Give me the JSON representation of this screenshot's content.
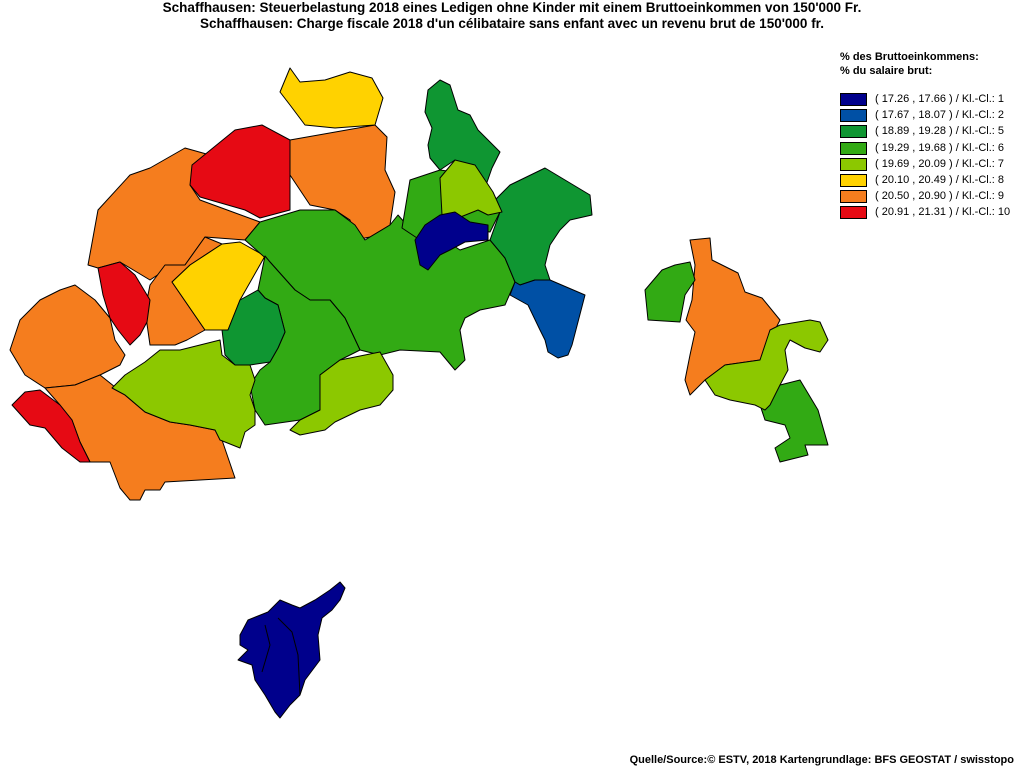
{
  "title": {
    "line1": "Schaffhausen: Steuerbelastung 2018 eines Ledigen ohne Kinder mit einem Bruttoeinkommen von 150'000 Fr.",
    "line2": "Schaffhausen: Charge fiscale 2018 d'un célibataire sans enfant avec un revenu brut de 150'000 fr."
  },
  "legend": {
    "title_de": "% des Bruttoeinkommens:",
    "title_fr": "% du salaire brut:",
    "items": [
      {
        "label": "( 17.26 , 17.66 ) / Kl.-Cl.: 1",
        "color": "#00008c"
      },
      {
        "label": "( 17.67 , 18.07 ) / Kl.-Cl.: 2",
        "color": "#0050a5"
      },
      {
        "label": "( 18.89 , 19.28 ) / Kl.-Cl.: 5",
        "color": "#0f9632"
      },
      {
        "label": "( 19.29 , 19.68 ) / Kl.-Cl.: 6",
        "color": "#32aa14"
      },
      {
        "label": "( 19.69 , 20.09 ) / Kl.-Cl.: 7",
        "color": "#8cc800"
      },
      {
        "label": "( 20.10 , 20.49 ) / Kl.-Cl.: 8",
        "color": "#ffd200"
      },
      {
        "label": "( 20.50 , 20.90 ) / Kl.-Cl.: 9",
        "color": "#f57d1e"
      },
      {
        "label": "( 20.91 , 21.31 ) / Kl.-Cl.: 10",
        "color": "#e60a14"
      }
    ]
  },
  "source": "Quelle/Source:© ESTV, 2018 Kartengrundlage: BFS GEOSTAT / swisstopo"
}
